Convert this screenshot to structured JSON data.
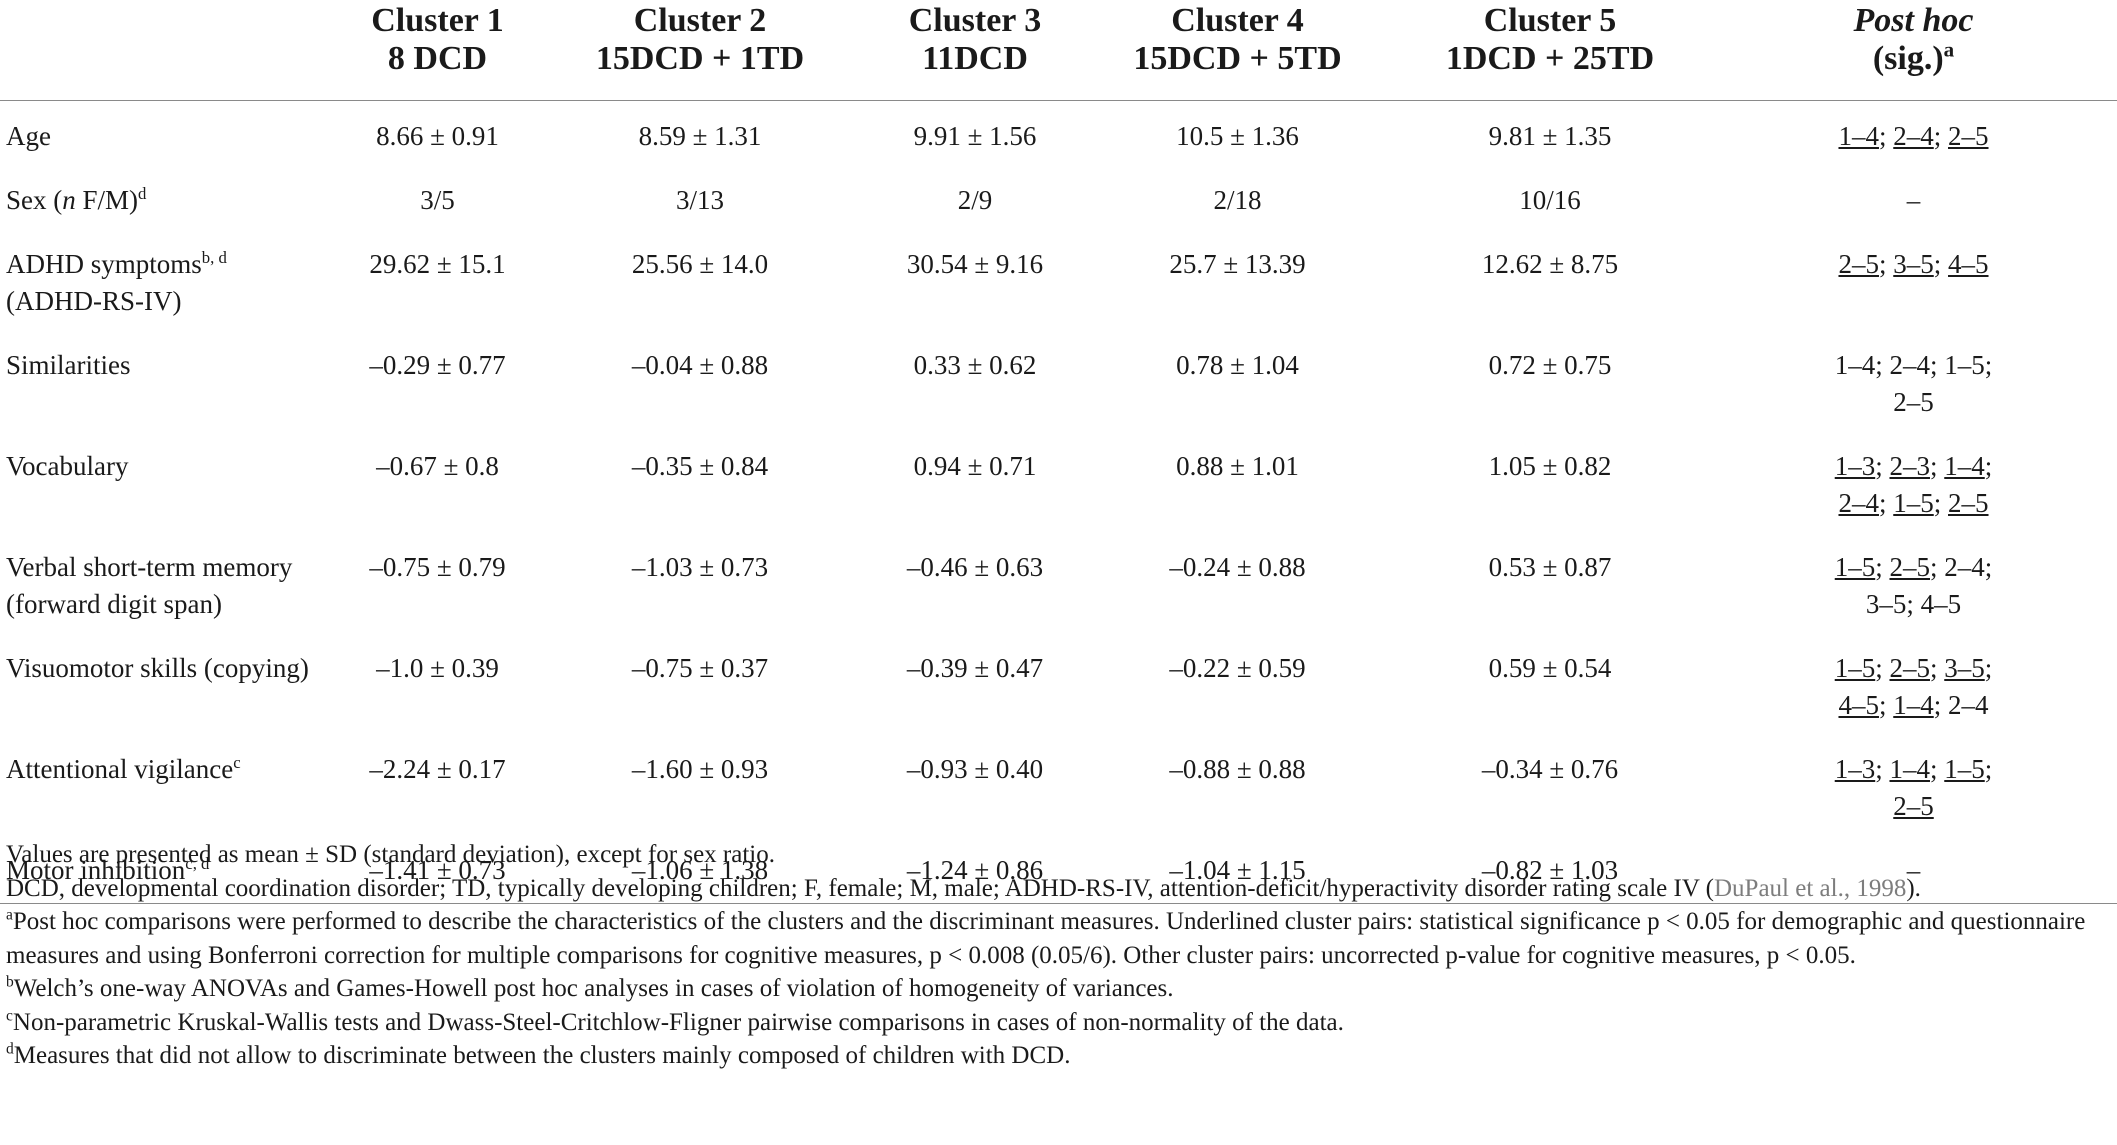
{
  "header": {
    "c1_line1": "Cluster 1",
    "c1_line2": "8 DCD",
    "c2_line1": "Cluster 2",
    "c2_line2": "15DCD + 1TD",
    "c3_line1": "Cluster 3",
    "c3_line2": "11DCD",
    "c4_line1": "Cluster 4",
    "c4_line2": "15DCD + 5TD",
    "c5_line1": "Cluster 5",
    "c5_line2": "1DCD + 25TD",
    "posthoc_line1": "Post hoc",
    "posthoc_line2": "(sig.)",
    "posthoc_sup": "a"
  },
  "rows": [
    {
      "label": "Age",
      "v1": "8.66 ± 0.91",
      "v2": "8.59 ± 1.31",
      "v3": "9.91 ± 1.56",
      "v4": "10.5 ± 1.36",
      "v5": "9.81 ± 1.35",
      "ph": [
        "1–4",
        "; ",
        "2–4",
        "; ",
        "2–5"
      ]
    },
    {
      "label_pre": "Sex (",
      "label_italic": "n",
      "label_post": " F/M)",
      "label_sup": "d",
      "v1": "3/5",
      "v2": "3/13",
      "v3": "2/9",
      "v4": "2/18",
      "v5": "10/16",
      "ph": "–"
    },
    {
      "label": "ADHD symptoms",
      "label_sup": "b, d",
      "label2": "(ADHD-RS-IV)",
      "v1": "29.62 ± 15.1",
      "v2": "25.56 ± 14.0",
      "v3": "30.54 ± 9.16",
      "v4": "25.7 ± 13.39",
      "v5": "12.62 ± 8.75",
      "ph": [
        "2–5",
        "; ",
        "3–5",
        "; ",
        "4–5"
      ]
    },
    {
      "label": "Similarities",
      "v1": "–0.29 ± 0.77",
      "v2": "–0.04 ± 0.88",
      "v3": "0.33 ± 0.62",
      "v4": "0.78 ± 1.04",
      "v5": "0.72 ± 0.75",
      "ph_line1": "1–4; 2–4; 1–5;",
      "ph_line2": "2–5"
    },
    {
      "label": "Vocabulary",
      "v1": "–0.67 ± 0.8",
      "v2": "–0.35 ± 0.84",
      "v3": "0.94 ± 0.71",
      "v4": "0.88 ± 1.01",
      "v5": "1.05 ± 0.82",
      "ph_line1": [
        "1–3",
        "; ",
        "2–3",
        "; ",
        "1–4",
        ";"
      ],
      "ph_line2": [
        "2–4",
        "; ",
        "1–5",
        "; ",
        "2–5"
      ]
    },
    {
      "label": "Verbal short-term memory",
      "label2": "(forward digit span)",
      "v1": "–0.75 ± 0.79",
      "v2": "–1.03 ± 0.73",
      "v3": "–0.46 ± 0.63",
      "v4": "–0.24 ± 0.88",
      "v5": "0.53 ± 0.87",
      "ph_line1": [
        "1–5",
        "; ",
        "2–5",
        "; 2–4;"
      ],
      "ph_line2": "3–5; 4–5"
    },
    {
      "label": "Visuomotor skills (copying)",
      "v1": "–1.0 ± 0.39",
      "v2": "–0.75 ± 0.37",
      "v3": "–0.39 ± 0.47",
      "v4": "–0.22 ± 0.59",
      "v5": "0.59 ± 0.54",
      "ph_line1": [
        "1–5",
        "; ",
        "2–5",
        "; ",
        "3–5",
        ";"
      ],
      "ph_line2": [
        "4–5",
        "; ",
        "1–4",
        "; 2–4"
      ]
    },
    {
      "label": "Attentional vigilance",
      "label_sup": "c",
      "v1": "–2.24 ± 0.17",
      "v2": "–1.60 ± 0.93",
      "v3": "–0.93 ± 0.40",
      "v4": "–0.88 ± 0.88",
      "v5": "–0.34 ± 0.76",
      "ph_line1": [
        "1–3",
        "; ",
        "1–4",
        "; ",
        "1–5",
        ";"
      ],
      "ph_line2": [
        "2–5"
      ]
    },
    {
      "label": "Motor inhibition",
      "label_sup": "c, d",
      "v1": "–1.41 ± 0.73",
      "v2": "–1.06 ± 1.38",
      "v3": "–1.24 ± 0.86",
      "v4": "–1.04 ± 1.15",
      "v5": "–0.82 ± 1.03",
      "ph": "–"
    }
  ],
  "notes": {
    "n1": "Values are presented as mean ± SD (standard deviation), except for sex ratio.",
    "n2_text": "DCD, developmental coordination disorder; TD, typically developing children; F, female; M, male; ADHD-RS-IV, attention-deficit/hyperactivity disorder rating scale IV (",
    "n2_ref": "DuPaul et al., 1998",
    "n2_end": ").",
    "a_mark": "a",
    "a_text": "Post hoc comparisons were performed to describe the characteristics of the clusters and the discriminant measures. Underlined cluster pairs: statistical significance p < 0.05 for demographic and questionnaire measures and using Bonferroni correction for multiple comparisons for cognitive measures, p < 0.008 (0.05/6). Other cluster pairs: uncorrected p-value for cognitive measures, p < 0.05.",
    "b_mark": "b",
    "b_text": "Welch’s one-way ANOVAs and Games-Howell post hoc analyses in cases of violation of homogeneity of variances.",
    "c_mark": "c",
    "c_text": "Non-parametric Kruskal-Wallis tests and Dwass-Steel-Critchlow-Fligner pairwise comparisons in cases of non-normality of the data.",
    "d_mark": "d",
    "d_text": "Measures that did not allow to discriminate between the clusters mainly composed of children with DCD."
  }
}
